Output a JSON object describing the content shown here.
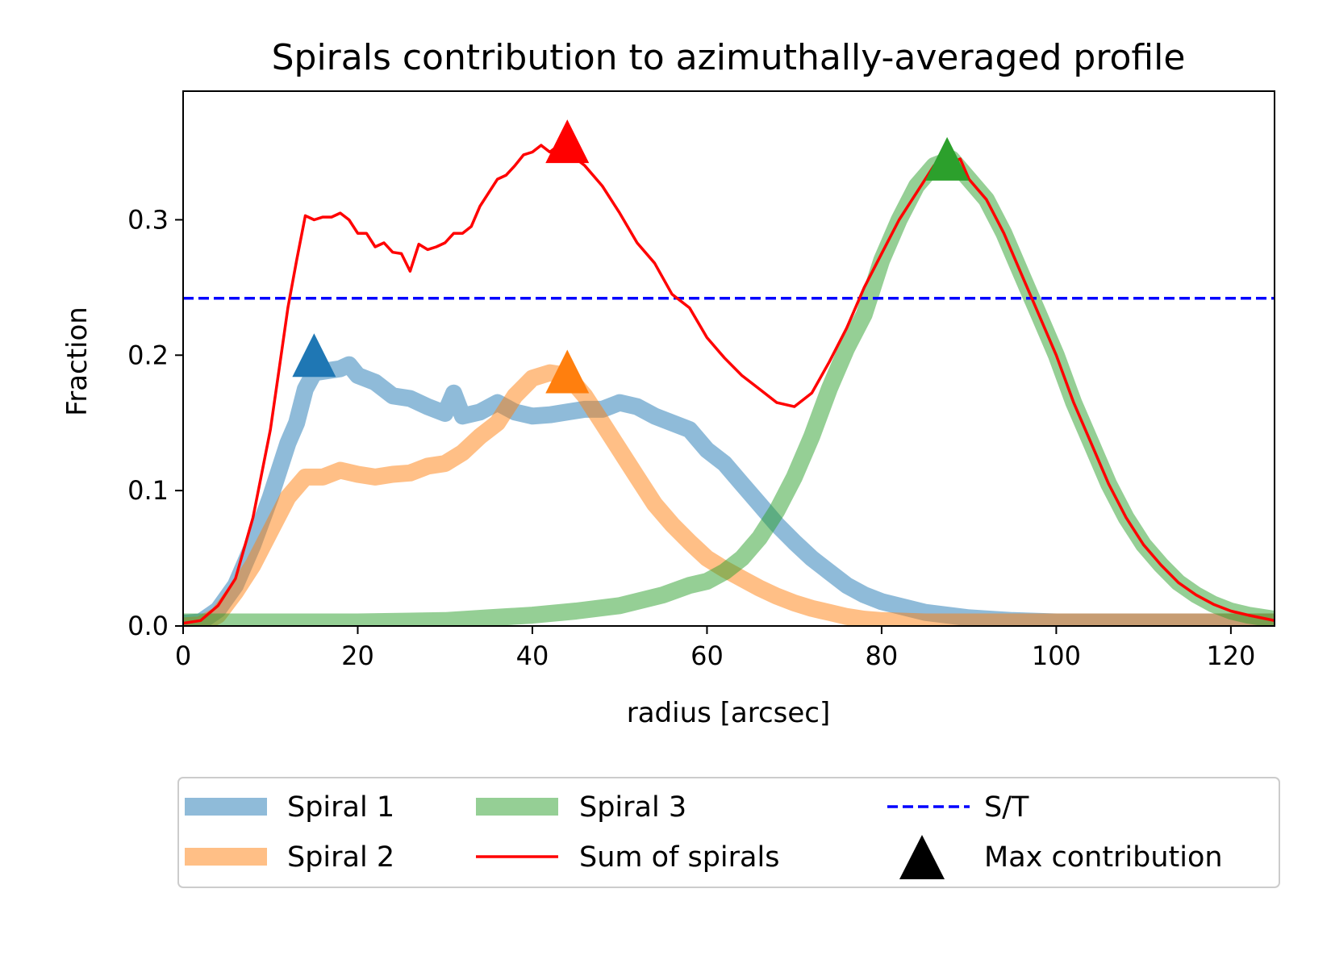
{
  "chart_data": {
    "type": "line",
    "title": "Spirals contribution to azimuthally-averaged profile",
    "xlabel": "radius [arcsec]",
    "ylabel": "Fraction",
    "xlim": [
      0,
      125
    ],
    "ylim": [
      0,
      0.395
    ],
    "xticks": [
      0,
      20,
      40,
      60,
      80,
      100,
      120
    ],
    "xtick_labels": [
      "0",
      "20",
      "40",
      "60",
      "80",
      "100",
      "120"
    ],
    "yticks": [
      0.0,
      0.1,
      0.2,
      0.3
    ],
    "ytick_labels": [
      "0.0",
      "0.1",
      "0.2",
      "0.3"
    ],
    "grid": false,
    "legend_position": "below plot, 3 columns",
    "series": [
      {
        "name": "Spiral 1",
        "color": "#1f77b4",
        "opacity": 0.5,
        "style": "thick",
        "x": [
          0,
          2,
          4,
          6,
          8,
          10,
          12,
          13,
          14,
          15,
          16,
          18,
          19,
          20,
          22,
          24,
          26,
          28,
          30,
          31,
          32,
          34,
          36,
          38,
          40,
          42,
          44,
          46,
          48,
          50,
          52,
          54,
          56,
          58,
          60,
          62,
          64,
          66,
          68,
          70,
          72,
          74,
          76,
          78,
          80,
          85,
          90,
          95,
          100,
          105,
          110,
          115,
          120,
          125
        ],
        "y": [
          0.002,
          0.003,
          0.012,
          0.03,
          0.06,
          0.095,
          0.135,
          0.15,
          0.175,
          0.187,
          0.188,
          0.19,
          0.193,
          0.185,
          0.18,
          0.17,
          0.168,
          0.162,
          0.157,
          0.172,
          0.155,
          0.158,
          0.165,
          0.158,
          0.155,
          0.156,
          0.158,
          0.16,
          0.16,
          0.165,
          0.162,
          0.155,
          0.15,
          0.145,
          0.13,
          0.12,
          0.105,
          0.09,
          0.075,
          0.062,
          0.05,
          0.04,
          0.03,
          0.023,
          0.018,
          0.01,
          0.006,
          0.004,
          0.003,
          0.003,
          0.003,
          0.003,
          0.003,
          0.003
        ]
      },
      {
        "name": "Spiral 2",
        "color": "#ff7f0e",
        "opacity": 0.5,
        "style": "thick",
        "x": [
          0,
          2,
          4,
          6,
          8,
          10,
          12,
          14,
          16,
          18,
          20,
          22,
          24,
          26,
          28,
          30,
          32,
          34,
          36,
          38,
          40,
          42,
          44,
          46,
          48,
          50,
          52,
          54,
          56,
          58,
          60,
          62,
          64,
          66,
          68,
          70,
          72,
          74,
          76,
          78,
          80,
          85,
          90,
          95,
          100,
          110,
          125
        ],
        "y": [
          0.0,
          0.001,
          0.008,
          0.025,
          0.045,
          0.07,
          0.095,
          0.11,
          0.11,
          0.115,
          0.112,
          0.11,
          0.112,
          0.113,
          0.118,
          0.12,
          0.128,
          0.14,
          0.15,
          0.17,
          0.183,
          0.187,
          0.185,
          0.17,
          0.15,
          0.13,
          0.11,
          0.09,
          0.075,
          0.062,
          0.05,
          0.042,
          0.035,
          0.028,
          0.022,
          0.017,
          0.013,
          0.01,
          0.007,
          0.005,
          0.004,
          0.003,
          0.003,
          0.003,
          0.003,
          0.003,
          0.003
        ]
      },
      {
        "name": "Spiral 3",
        "color": "#2ca02c",
        "opacity": 0.5,
        "style": "thick",
        "x": [
          0,
          10,
          20,
          30,
          35,
          40,
          45,
          50,
          55,
          58,
          60,
          62,
          64,
          66,
          68,
          70,
          72,
          74,
          76,
          78,
          80,
          82,
          84,
          86,
          88,
          90,
          92,
          94,
          96,
          98,
          100,
          102,
          104,
          106,
          108,
          110,
          112,
          114,
          116,
          118,
          120,
          122,
          125
        ],
        "y": [
          0.003,
          0.003,
          0.003,
          0.004,
          0.006,
          0.008,
          0.011,
          0.015,
          0.023,
          0.03,
          0.033,
          0.04,
          0.05,
          0.065,
          0.085,
          0.11,
          0.14,
          0.175,
          0.205,
          0.23,
          0.27,
          0.3,
          0.325,
          0.34,
          0.345,
          0.33,
          0.315,
          0.29,
          0.26,
          0.23,
          0.2,
          0.165,
          0.135,
          0.105,
          0.08,
          0.06,
          0.045,
          0.032,
          0.023,
          0.016,
          0.011,
          0.008,
          0.005
        ]
      },
      {
        "name": "Sum of spirals",
        "color": "#ff0000",
        "opacity": 1,
        "style": "thin",
        "x": [
          0,
          2,
          4,
          6,
          8,
          10,
          11,
          12,
          13,
          14,
          15,
          16,
          17,
          18,
          19,
          20,
          21,
          22,
          23,
          24,
          25,
          26,
          27,
          28,
          29,
          30,
          31,
          32,
          33,
          34,
          35,
          36,
          37,
          38,
          39,
          40,
          41,
          42,
          43,
          44,
          45,
          46,
          48,
          50,
          52,
          54,
          56,
          57,
          58,
          60,
          62,
          64,
          66,
          68,
          70,
          72,
          74,
          76,
          78,
          80,
          82,
          84,
          86,
          87,
          88,
          89,
          90,
          92,
          94,
          96,
          98,
          100,
          102,
          104,
          106,
          108,
          110,
          112,
          114,
          116,
          118,
          120,
          122,
          125
        ],
        "y": [
          0.002,
          0.004,
          0.015,
          0.035,
          0.08,
          0.145,
          0.19,
          0.235,
          0.27,
          0.303,
          0.3,
          0.302,
          0.302,
          0.305,
          0.3,
          0.29,
          0.29,
          0.28,
          0.283,
          0.276,
          0.275,
          0.262,
          0.282,
          0.278,
          0.28,
          0.283,
          0.29,
          0.29,
          0.295,
          0.31,
          0.32,
          0.33,
          0.333,
          0.34,
          0.348,
          0.35,
          0.355,
          0.35,
          0.355,
          0.353,
          0.345,
          0.34,
          0.325,
          0.305,
          0.283,
          0.268,
          0.245,
          0.24,
          0.235,
          0.213,
          0.198,
          0.185,
          0.175,
          0.165,
          0.162,
          0.172,
          0.195,
          0.22,
          0.25,
          0.275,
          0.3,
          0.32,
          0.34,
          0.345,
          0.342,
          0.345,
          0.33,
          0.315,
          0.29,
          0.26,
          0.23,
          0.2,
          0.165,
          0.135,
          0.105,
          0.08,
          0.06,
          0.045,
          0.032,
          0.023,
          0.016,
          0.011,
          0.008,
          0.004
        ]
      }
    ],
    "reference_line": {
      "name": "S/T",
      "y": 0.242,
      "color": "#0000ff",
      "style": "dashed"
    },
    "max_markers": {
      "name": "Max contribution",
      "points": [
        {
          "series": "Spiral 1",
          "x": 15,
          "y": 0.2,
          "color": "#1f77b4"
        },
        {
          "series": "Spiral 2",
          "x": 44,
          "y": 0.188,
          "color": "#ff7f0e"
        },
        {
          "series": "Sum of spirals",
          "x": 44,
          "y": 0.358,
          "color": "#ff0000"
        },
        {
          "series": "Spiral 3",
          "x": 87.5,
          "y": 0.345,
          "color": "#2ca02c"
        }
      ]
    }
  },
  "legend": {
    "items": [
      {
        "label": "Spiral 1",
        "kind": "thick",
        "color": "#1f77b4"
      },
      {
        "label": "Spiral 2",
        "kind": "thick",
        "color": "#ff7f0e"
      },
      {
        "label": "Spiral 3",
        "kind": "thick",
        "color": "#2ca02c"
      },
      {
        "label": "Sum of spirals",
        "kind": "thin",
        "color": "#ff0000"
      },
      {
        "label": "S/T",
        "kind": "dashed",
        "color": "#0000ff"
      },
      {
        "label": "Max contribution",
        "kind": "marker",
        "color": "#000000"
      }
    ]
  }
}
